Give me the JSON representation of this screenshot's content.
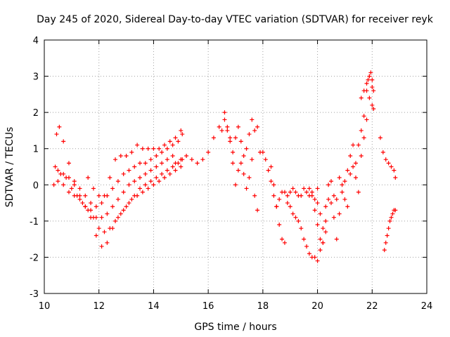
{
  "chart_data": {
    "type": "scatter",
    "title": "Day 245 of 2020, Sidereal Day-to-day VTEC variation (SDTVAR) for receiver reyk",
    "xlabel": "GPS time / hours",
    "ylabel": "SDTVAR / TECUs",
    "xlim": [
      10,
      24
    ],
    "ylim": [
      -3,
      4
    ],
    "xticks": [
      "10",
      "12",
      "14",
      "16",
      "18",
      "20",
      "22",
      "24"
    ],
    "yticks": [
      "-3",
      "-2",
      "-1",
      "0",
      "1",
      "2",
      "3",
      "4"
    ],
    "grid": true,
    "marker": "+",
    "color": "#ff0000",
    "series": [
      {
        "name": "track-1",
        "x": [
          10.35,
          10.45,
          10.55,
          10.7,
          10.9,
          11.1,
          11.3,
          11.5,
          11.7,
          11.9,
          12.1,
          12.3,
          12.5,
          12.7,
          12.9,
          13.1,
          13.3,
          13.5,
          13.7,
          13.9,
          14.1,
          14.3,
          14.5,
          14.7,
          14.9,
          15.05
        ],
        "y": [
          0.0,
          1.4,
          1.6,
          1.2,
          0.6,
          0.1,
          -0.3,
          -0.6,
          -0.9,
          -1.4,
          -1.7,
          -1.6,
          -1.2,
          -0.9,
          -0.7,
          -0.5,
          -0.3,
          -0.1,
          0.0,
          0.1,
          0.2,
          0.3,
          0.4,
          0.5,
          0.6,
          0.7
        ]
      },
      {
        "name": "track-2",
        "x": [
          10.4,
          10.6,
          10.8,
          11.0,
          11.2,
          11.4,
          11.6,
          11.8,
          12.0,
          12.2,
          12.4,
          12.6,
          12.8,
          13.0,
          13.2,
          13.4,
          13.6,
          13.8,
          14.0,
          14.2,
          14.4,
          14.6,
          14.8,
          15.0
        ],
        "y": [
          0.5,
          0.3,
          0.2,
          -0.1,
          -0.3,
          -0.5,
          -0.7,
          -0.9,
          -1.2,
          -1.3,
          -1.2,
          -1.0,
          -0.8,
          -0.6,
          -0.4,
          -0.3,
          -0.2,
          -0.1,
          0.0,
          0.1,
          0.2,
          0.3,
          0.4,
          0.5
        ]
      },
      {
        "name": "track-3",
        "x": [
          10.5,
          10.7,
          10.9,
          11.1,
          11.3,
          11.5,
          11.7,
          11.9,
          12.1,
          12.3,
          12.5,
          12.7,
          12.9,
          13.1,
          13.3,
          13.5,
          13.7,
          13.9,
          14.1,
          14.3,
          14.5,
          14.7
        ],
        "y": [
          0.1,
          0.0,
          -0.2,
          -0.3,
          -0.4,
          -0.6,
          -0.7,
          -0.9,
          -0.9,
          -0.8,
          -0.6,
          -0.4,
          -0.2,
          0.0,
          0.1,
          0.2,
          0.3,
          0.4,
          0.5,
          0.6,
          0.7,
          0.8
        ]
      },
      {
        "name": "track-4",
        "x": [
          10.5,
          10.7,
          10.9,
          11.1,
          11.3,
          11.5,
          11.7,
          11.9,
          12.1,
          12.3,
          12.5,
          12.7,
          12.9,
          13.1,
          13.3,
          13.5,
          13.7,
          13.9,
          14.1,
          14.3,
          14.5,
          14.7,
          14.9,
          15.05
        ],
        "y": [
          0.4,
          0.3,
          0.2,
          0.0,
          -0.1,
          -0.3,
          -0.5,
          -0.6,
          -0.5,
          -0.3,
          -0.1,
          0.1,
          0.3,
          0.4,
          0.5,
          0.6,
          0.6,
          0.7,
          0.8,
          0.9,
          1.0,
          1.1,
          1.2,
          1.4
        ]
      },
      {
        "name": "track-5",
        "x": [
          11.6,
          11.8,
          12.0,
          12.2,
          12.4,
          12.6,
          12.8,
          13.0,
          13.2,
          13.4,
          13.6,
          13.8,
          14.0,
          14.2,
          14.4,
          14.6,
          14.8,
          15.0
        ],
        "y": [
          0.2,
          -0.1,
          -0.3,
          -0.3,
          0.2,
          0.7,
          0.8,
          0.8,
          0.9,
          1.1,
          1.0,
          1.0,
          1.0,
          1.0,
          1.1,
          1.2,
          1.3,
          1.5
        ]
      },
      {
        "name": "track-6",
        "x": [
          14.8,
          15.0,
          15.2,
          15.4,
          15.6,
          15.8,
          16.0,
          16.2,
          16.4,
          16.5,
          16.6,
          16.7,
          16.8,
          16.9,
          17.0,
          17.1,
          17.2,
          17.3,
          17.4,
          17.5,
          17.6,
          17.7,
          17.8
        ],
        "y": [
          0.6,
          0.7,
          0.8,
          0.7,
          0.6,
          0.7,
          0.9,
          1.3,
          1.6,
          1.5,
          1.8,
          1.6,
          1.2,
          0.9,
          1.3,
          1.6,
          1.2,
          0.8,
          1.0,
          1.4,
          1.8,
          1.5,
          1.6
        ]
      },
      {
        "name": "track-7",
        "x": [
          16.6,
          16.7,
          16.8,
          16.9,
          17.0,
          17.1,
          17.2,
          17.3,
          17.4,
          17.5,
          17.6,
          17.7,
          17.8,
          17.9,
          18.0,
          18.1,
          18.2,
          18.3,
          18.4,
          18.5,
          18.6,
          18.7,
          18.8,
          18.9,
          19.0,
          19.1,
          19.2,
          19.3,
          19.4,
          19.5,
          19.6,
          19.7,
          19.8,
          19.9,
          20.0
        ],
        "y": [
          2.0,
          1.5,
          1.3,
          0.6,
          0.0,
          0.4,
          0.6,
          0.3,
          -0.1,
          0.2,
          0.7,
          -0.3,
          -0.7,
          0.9,
          0.9,
          0.7,
          0.4,
          0.1,
          -0.3,
          -0.6,
          -0.4,
          -0.2,
          -0.2,
          -0.3,
          -0.2,
          -0.1,
          -0.2,
          -0.3,
          -0.3,
          -0.1,
          -0.2,
          -0.3,
          -0.2,
          -0.4,
          -0.1
        ]
      },
      {
        "name": "track-8",
        "x": [
          18.3,
          18.4,
          18.5,
          18.6,
          18.7,
          18.8,
          18.9,
          19.0,
          19.1,
          19.2,
          19.3,
          19.4,
          19.5,
          19.6,
          19.7,
          19.8,
          19.9,
          20.0,
          20.1,
          20.2,
          20.3
        ],
        "y": [
          0.5,
          0.0,
          -0.6,
          -1.1,
          -1.5,
          -1.6,
          -0.5,
          -0.6,
          -0.8,
          -0.9,
          -1.0,
          -1.2,
          -1.5,
          -1.7,
          -1.9,
          -2.0,
          -2.0,
          -2.1,
          -1.8,
          -1.6,
          -1.3
        ]
      },
      {
        "name": "track-9",
        "x": [
          19.7,
          19.8,
          19.9,
          20.0,
          20.1,
          20.2,
          20.3,
          20.4,
          20.5,
          20.6,
          20.7,
          20.8,
          20.9,
          21.0,
          21.1,
          21.2,
          21.3,
          21.4,
          21.5,
          21.6,
          21.7,
          21.8,
          21.9,
          22.0,
          22.05
        ],
        "y": [
          -0.1,
          -0.3,
          -0.7,
          -1.1,
          -1.5,
          -1.6,
          -1.0,
          -0.4,
          0.1,
          -0.3,
          -1.5,
          -0.8,
          -0.2,
          0.1,
          -0.6,
          0.3,
          0.5,
          0.2,
          -0.2,
          0.8,
          1.3,
          1.8,
          2.4,
          2.2,
          2.1
        ]
      },
      {
        "name": "track-10",
        "x": [
          20.0,
          20.1,
          20.2,
          20.3,
          20.4,
          20.5,
          20.6,
          20.7,
          20.8,
          20.9,
          21.0,
          21.1,
          21.2,
          21.3,
          21.4,
          21.5,
          21.6,
          21.7,
          21.8,
          21.9,
          22.0
        ],
        "y": [
          -0.5,
          -0.8,
          -1.2,
          -0.6,
          0.0,
          -0.5,
          -0.9,
          -0.4,
          0.2,
          0.0,
          -0.4,
          0.4,
          0.8,
          1.1,
          0.6,
          1.1,
          1.5,
          1.9,
          2.6,
          3.0,
          2.7
        ]
      },
      {
        "name": "track-11",
        "x": [
          21.6,
          21.7,
          21.8,
          21.85,
          21.9,
          21.95,
          22.0,
          22.05
        ],
        "y": [
          2.4,
          2.6,
          2.8,
          2.9,
          3.0,
          3.1,
          2.9,
          2.6
        ]
      },
      {
        "name": "track-12",
        "x": [
          22.3,
          22.4,
          22.5,
          22.6,
          22.7,
          22.8,
          22.85
        ],
        "y": [
          1.3,
          0.9,
          0.7,
          0.6,
          0.5,
          0.4,
          0.2
        ]
      },
      {
        "name": "track-13",
        "x": [
          22.45,
          22.5,
          22.55,
          22.6,
          22.65,
          22.7,
          22.75,
          22.8,
          22.85
        ],
        "y": [
          -1.8,
          -1.6,
          -1.4,
          -1.2,
          -1.0,
          -0.9,
          -0.8,
          -0.7,
          -0.7
        ]
      }
    ]
  }
}
